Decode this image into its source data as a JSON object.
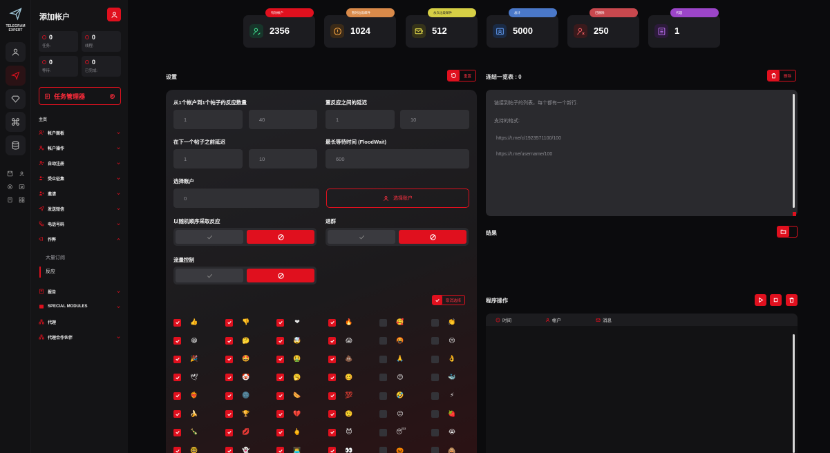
{
  "app": {
    "logo_text_line1": "TELEGRAM",
    "logo_text_line2": "EXPERT"
  },
  "sidebar": {
    "title": "添加帐户",
    "stats": [
      {
        "value": "0",
        "label": "任务:"
      },
      {
        "value": "0",
        "label": "线程:"
      },
      {
        "value": "0",
        "label": "等待:"
      },
      {
        "value": "0",
        "label": "已完成:"
      }
    ],
    "task_manager_label": "任务管理器",
    "section_label": "主页",
    "nav": [
      {
        "label": "帐户面板"
      },
      {
        "label": "帐户操作"
      },
      {
        "label": "自动注册"
      },
      {
        "label": "受众征集"
      },
      {
        "label": "邀请"
      },
      {
        "label": "发送短信"
      },
      {
        "label": "电话号码"
      },
      {
        "label": "作弊"
      },
      {
        "label": "报告"
      },
      {
        "label": "SPECIAL MODULES"
      },
      {
        "label": "代理"
      },
      {
        "label": "代理合作伙伴"
      }
    ],
    "subnav": [
      {
        "label": "大量订阅"
      },
      {
        "label": "反应"
      }
    ]
  },
  "top_stats": [
    {
      "pill": "有效帐户",
      "value": "2356",
      "color": "#e0101e"
    },
    {
      "pill": "暂时垃圾邮件",
      "value": "1024",
      "color": "#d98a4a"
    },
    {
      "pill": "永久垃圾邮件",
      "value": "512",
      "color": "#d6cf45"
    },
    {
      "pill": "总计",
      "value": "5000",
      "color": "#4a78c9"
    },
    {
      "pill": "已删除",
      "value": "250",
      "color": "#c8484e"
    },
    {
      "pill": "代理",
      "value": "1",
      "color": "#9c45c9"
    }
  ],
  "settings": {
    "title": "设置",
    "reset_label": "重置",
    "field1_label": "从1个帐户到1个帖子的反应数量",
    "field1_min": "1",
    "field1_max": "40",
    "field2_label": "置反应之间的延迟",
    "field2_min": "1",
    "field2_max": "10",
    "field3_label": "在下一个帖子之前延迟",
    "field3_min": "1",
    "field3_max": "10",
    "field4_label": "最长等待时间 (FloodWait)",
    "field4_value": "600",
    "accounts_label": "选择账户",
    "accounts_value": "0",
    "select_accounts_btn": "选择账户",
    "random_label": "以随机顺序采取反应",
    "leave_label": "退群",
    "traffic_label": "流量控制",
    "deselect_label": "取消选择"
  },
  "emoji_rows": [
    [
      "👍",
      "👎",
      "❤",
      "🔥",
      "🥰",
      "👏"
    ],
    [
      "😁",
      "🤔",
      "🤯",
      "😱",
      "🤬",
      "😢"
    ],
    [
      "🎉",
      "🤩",
      "🤮",
      "💩",
      "🙏",
      "👌"
    ],
    [
      "🕊",
      "🤡",
      "🥱",
      "🥴",
      "😍",
      "🐳"
    ],
    [
      "❤‍🔥",
      "🌚",
      "🌭",
      "💯",
      "🤣",
      "⚡"
    ],
    [
      "🍌",
      "🏆",
      "💔",
      "🤨",
      "😐",
      "🍓"
    ],
    [
      "🍾",
      "💋",
      "🖕",
      "😈",
      "😴",
      "😭"
    ],
    [
      "🤓",
      "👻",
      "👨‍💻",
      "👀",
      "🎃",
      "🙈"
    ]
  ],
  "emoji_checked_cols": [
    true,
    true,
    true,
    true,
    false,
    false
  ],
  "links": {
    "title": "连结一览表 : 0",
    "delete_label": "删除",
    "placeholder_line1": "链接到帖子的列表，每个都有一个新行.",
    "placeholder_line2": "支持的格式:",
    "example1": "https://t.me/c/1923571100/100",
    "example2": "https://t.me/username/100"
  },
  "results": {
    "title": "结果"
  },
  "operations": {
    "title": "程序操作",
    "col_time": "时间",
    "col_account": "帐户",
    "col_message": "消息"
  }
}
